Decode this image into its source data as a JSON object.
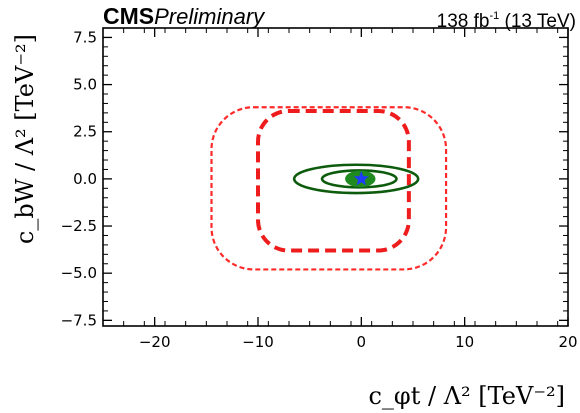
{
  "header": {
    "experiment": "CMS",
    "status": "Preliminary",
    "luminosity_value": "138 fb",
    "luminosity_exponent": "-1",
    "energy": "(13 TeV)"
  },
  "chart_data": {
    "type": "contour",
    "xlabel": "c_φt / Λ² [TeV⁻²]",
    "ylabel": "c_bW / Λ² [TeV⁻²]",
    "xlim": [
      -25,
      20
    ],
    "ylim": [
      -7.8,
      8.0
    ],
    "x_ticks": [
      -20,
      -10,
      0,
      10,
      20
    ],
    "x_tick_labels": [
      "−20",
      "−10",
      "0",
      "10",
      "20"
    ],
    "y_ticks": [
      -7.5,
      -5.0,
      -2.5,
      0.0,
      2.5,
      5.0,
      7.5
    ],
    "y_tick_labels": [
      "−7.5",
      "−5.0",
      "−2.5",
      "0.0",
      "2.5",
      "5.0",
      "7.5"
    ],
    "grid": false,
    "best_fit": {
      "x": 0.0,
      "y": 0.0,
      "marker": "star",
      "color": "#1f3bff"
    },
    "contours": [
      {
        "id": "red-outer",
        "color": "#ff2b2b",
        "style": "dashed-thin",
        "x_range": [
          -14.5,
          8.2
        ],
        "y_range": [
          -4.8,
          3.8
        ]
      },
      {
        "id": "red-inner",
        "color": "#ee1c1c",
        "style": "dashed-thick",
        "x_range": [
          -10.0,
          4.6
        ],
        "y_range": [
          -3.8,
          3.6
        ]
      },
      {
        "id": "green-outer",
        "color": "#0d5c0d",
        "style": "solid",
        "x_range": [
          -6.5,
          5.5
        ],
        "y_range": [
          -0.75,
          0.75
        ]
      },
      {
        "id": "green-inner",
        "color": "#0d5c0d",
        "style": "solid",
        "x_range": [
          -3.8,
          3.4
        ],
        "y_range": [
          -0.45,
          0.45
        ]
      },
      {
        "id": "green-core",
        "color": "#1f8a1f",
        "style": "filled",
        "x_range": [
          -1.5,
          1.3
        ],
        "y_range": [
          -0.4,
          0.4
        ]
      }
    ]
  }
}
